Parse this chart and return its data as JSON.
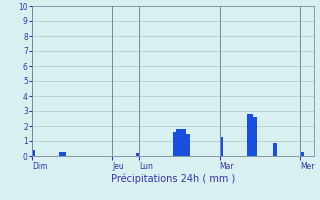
{
  "title": "",
  "xlabel": "Précipitations 24h ( mm )",
  "ylabel": "",
  "background_color": "#d8f0f0",
  "bar_color": "#1a4fdd",
  "grid_color": "#aac8c8",
  "text_color": "#3333aa",
  "ylim": [
    0,
    10
  ],
  "yticks": [
    0,
    1,
    2,
    3,
    4,
    5,
    6,
    7,
    8,
    9,
    10
  ],
  "day_labels": [
    "Dim",
    "Jeu",
    "Lun",
    "Mar",
    "Mer"
  ],
  "day_positions": [
    0,
    24,
    32,
    56,
    80
  ],
  "n_bars": 84,
  "values": [
    0.4,
    0.0,
    0.0,
    0.0,
    0.0,
    0.0,
    0.0,
    0.0,
    0.3,
    0.3,
    0.0,
    0.0,
    0.0,
    0.0,
    0.0,
    0.0,
    0.0,
    0.0,
    0.0,
    0.0,
    0.0,
    0.0,
    0.0,
    0.0,
    0.0,
    0.0,
    0.0,
    0.0,
    0.0,
    0.0,
    0.0,
    0.2,
    0.0,
    0.0,
    0.0,
    0.0,
    0.0,
    0.0,
    0.0,
    0.0,
    0.0,
    0.0,
    1.6,
    1.8,
    1.8,
    1.8,
    1.5,
    0.0,
    0.0,
    0.0,
    0.0,
    0.0,
    0.0,
    0.0,
    0.0,
    0.0,
    1.3,
    0.0,
    0.0,
    0.0,
    0.0,
    0.0,
    0.0,
    0.0,
    2.8,
    2.8,
    2.6,
    0.0,
    0.0,
    0.0,
    0.0,
    0.0,
    0.9,
    0.0,
    0.0,
    0.0,
    0.0,
    0.0,
    0.0,
    0.0,
    0.3,
    0.0,
    0.0,
    0.0
  ]
}
